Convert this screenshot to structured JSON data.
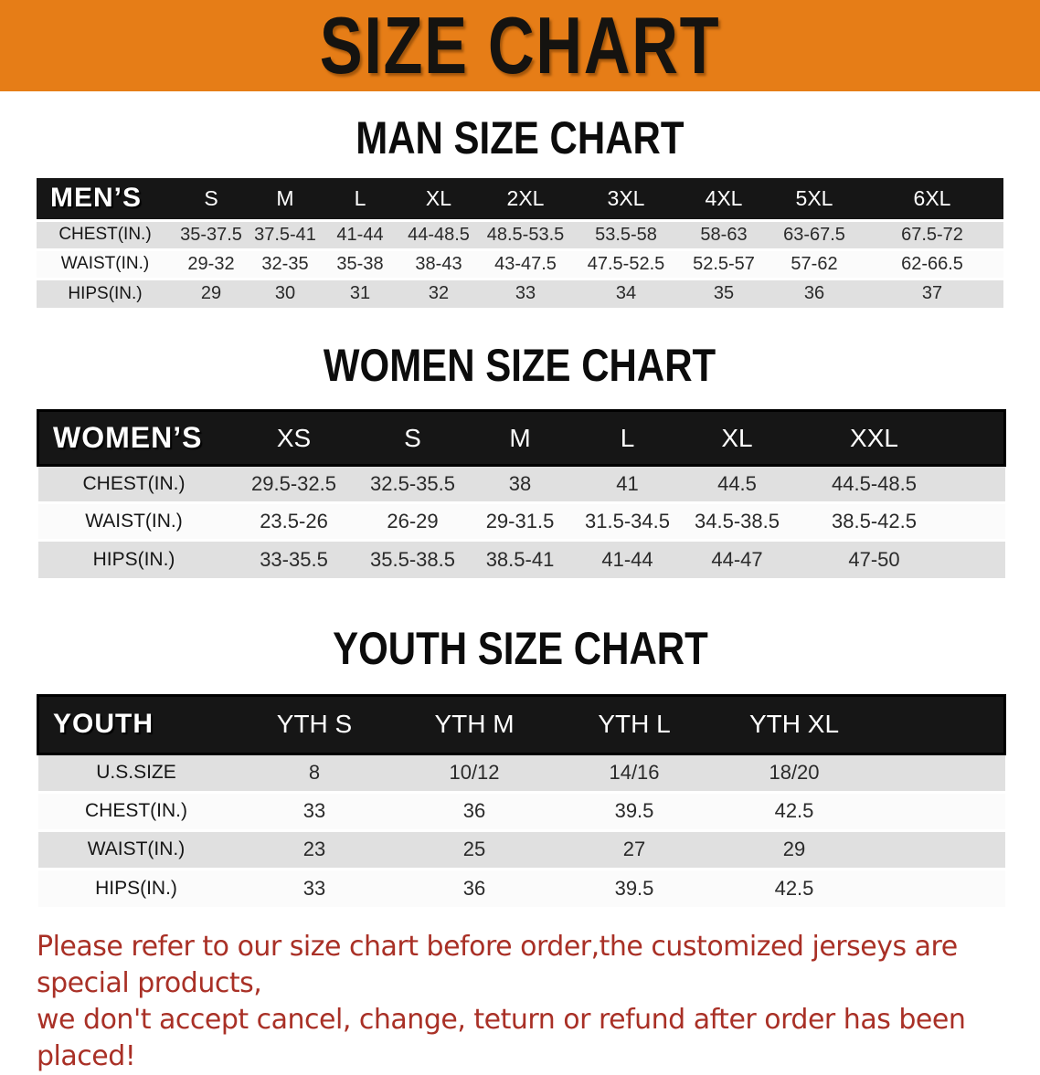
{
  "banner": {
    "title": "SIZE CHART"
  },
  "sections": [
    {
      "id": "men",
      "title": "MAN SIZE CHART",
      "table": {
        "header_label": "MEN’S",
        "columns": [
          "S",
          "M",
          "L",
          "XL",
          "2XL",
          "3XL",
          "4XL",
          "5XL",
          "6XL"
        ],
        "rows": [
          {
            "label": "CHEST(IN.)",
            "values": [
              "35-37.5",
              "37.5-41",
              "41-44",
              "44-48.5",
              "48.5-53.5",
              "53.5-58",
              "58-63",
              "63-67.5",
              "67.5-72"
            ]
          },
          {
            "label": "WAIST(IN.)",
            "values": [
              "29-32",
              "32-35",
              "35-38",
              "38-43",
              "43-47.5",
              "47.5-52.5",
              "52.5-57",
              "57-62",
              "62-66.5"
            ]
          },
          {
            "label": "HIPS(IN.)",
            "values": [
              "29",
              "30",
              "31",
              "32",
              "33",
              "34",
              "35",
              "36",
              "37"
            ]
          }
        ]
      }
    },
    {
      "id": "women",
      "title": "WOMEN SIZE CHART",
      "table": {
        "header_label": "WOMEN’S",
        "columns": [
          "XS",
          "S",
          "M",
          "L",
          "XL",
          "XXL"
        ],
        "rows": [
          {
            "label": "CHEST(IN.)",
            "values": [
              "29.5-32.5",
              "32.5-35.5",
              "38",
              "41",
              "44.5",
              "44.5-48.5"
            ]
          },
          {
            "label": "WAIST(IN.)",
            "values": [
              "23.5-26",
              "26-29",
              "29-31.5",
              "31.5-34.5",
              "34.5-38.5",
              "38.5-42.5"
            ]
          },
          {
            "label": "HIPS(IN.)",
            "values": [
              "33-35.5",
              "35.5-38.5",
              "38.5-41",
              "41-44",
              "44-47",
              "47-50"
            ]
          }
        ]
      }
    },
    {
      "id": "youth",
      "title": "YOUTH SIZE CHART",
      "table": {
        "header_label": "YOUTH",
        "columns": [
          "YTH S",
          "YTH M",
          "YTH L",
          "YTH XL"
        ],
        "rows": [
          {
            "label": "U.S.SIZE",
            "values": [
              "8",
              "10/12",
              "14/16",
              "18/20"
            ]
          },
          {
            "label": "CHEST(IN.)",
            "values": [
              "33",
              "36",
              "39.5",
              "42.5"
            ]
          },
          {
            "label": "WAIST(IN.)",
            "values": [
              "23",
              "25",
              "27",
              "29"
            ]
          },
          {
            "label": "HIPS(IN.)",
            "values": [
              "33",
              "36",
              "39.5",
              "42.5"
            ]
          }
        ]
      }
    }
  ],
  "disclaimer": {
    "lines": [
      "Please refer to our size chart before order,the customized jerseys are special products,",
      "we don't accept cancel, change, teturn or refund after order has been placed!"
    ]
  },
  "colors": {
    "banner_bg": "#E67D17",
    "table_header_bg": "#1A1A1A",
    "row_alt_gray": "#E0E0E0",
    "disclaimer_red": "#A93026"
  }
}
